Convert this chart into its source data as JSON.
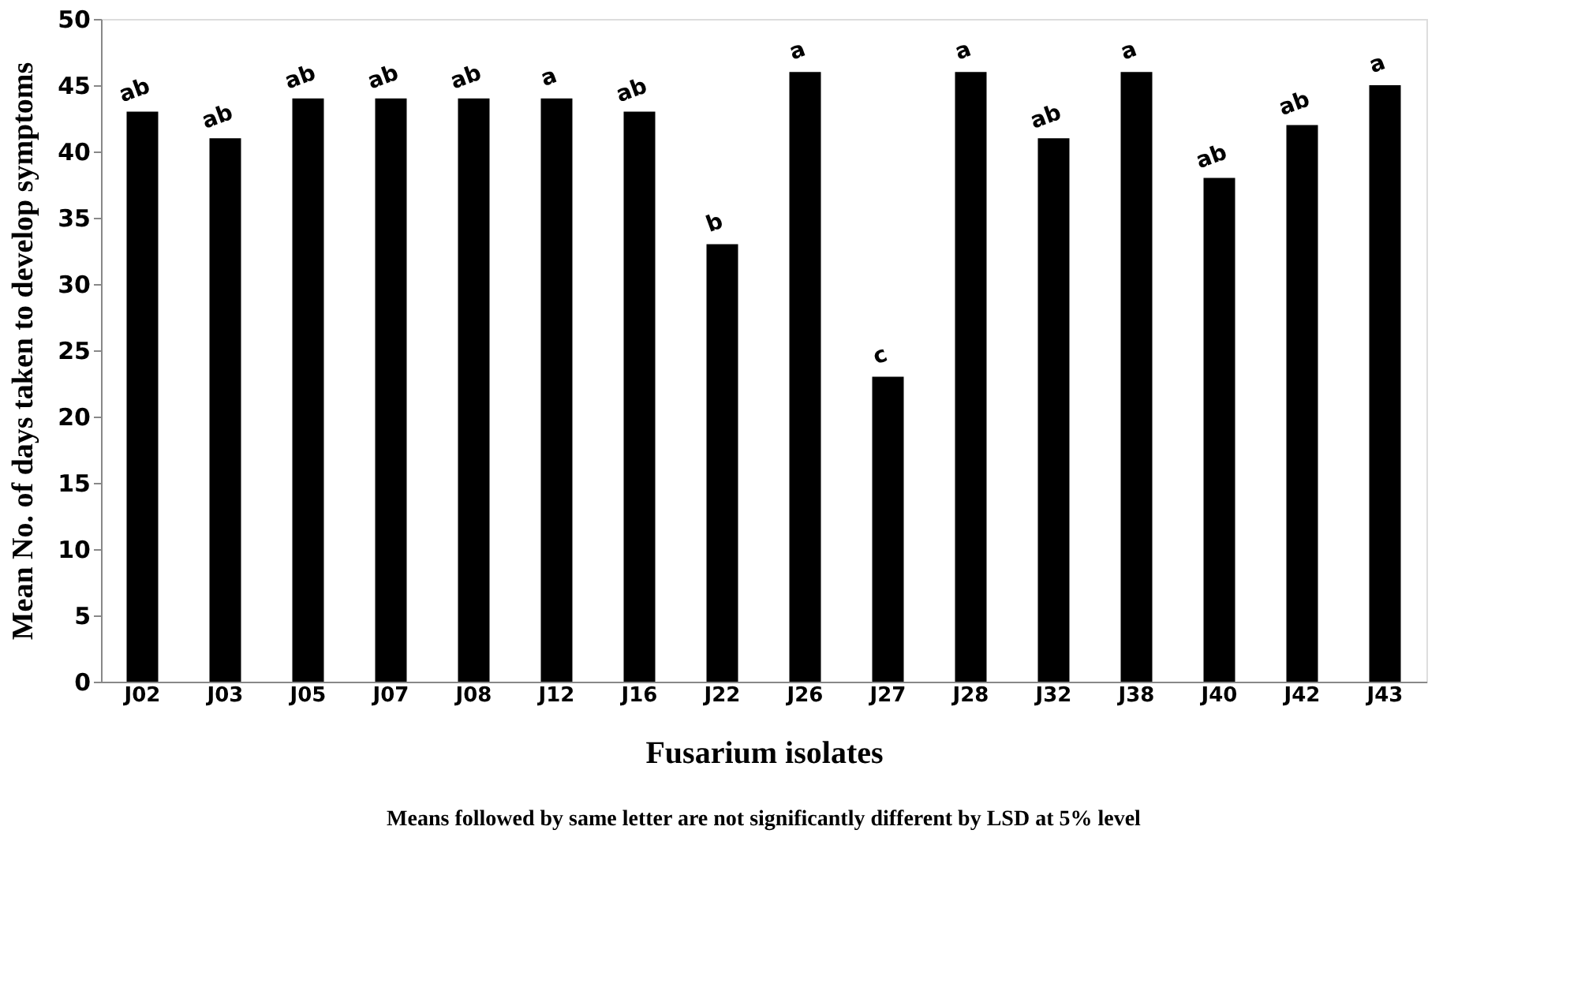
{
  "chart_data": {
    "type": "bar",
    "categories": [
      "J02",
      "J03",
      "J05",
      "J07",
      "J08",
      "J12",
      "J16",
      "J22",
      "J26",
      "J27",
      "J28",
      "J32",
      "J38",
      "J40",
      "J42",
      "J43"
    ],
    "values": [
      43,
      41,
      44,
      44,
      44,
      44,
      43,
      33,
      46,
      23,
      46,
      41,
      46,
      38,
      42,
      45
    ],
    "value_labels": [
      "ab",
      "ab",
      "ab",
      "ab",
      "ab",
      "a",
      "ab",
      "b",
      "a",
      "c",
      "a",
      "ab",
      "a",
      "ab",
      "ab",
      "a"
    ],
    "color": "#000000",
    "xlabel": "Fusarium isolates",
    "ylabel": "Mean No. of days taken to develop symptoms",
    "ylim": [
      0,
      50
    ],
    "yticks": [
      0,
      5,
      10,
      15,
      20,
      25,
      30,
      35,
      40,
      45,
      50
    ],
    "grid": false,
    "annotations": [
      "Means followed by same letter are not significantly different by LSD at 5% level"
    ]
  }
}
